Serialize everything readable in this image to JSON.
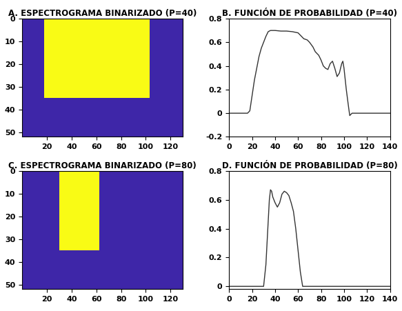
{
  "chart_data": [
    {
      "type": "image",
      "title": "A. ESPECTROGRAMA BINARIZADO (P=40)",
      "cells": {
        "n_rows": 52,
        "n_cols": 130,
        "filled_rows": [
          0,
          35
        ],
        "filled_cols": [
          18,
          103
        ],
        "empty_value": 0,
        "filled_value": 1
      },
      "colors": [
        "#3e26a8",
        "#f9fb15"
      ],
      "xlim": [
        0,
        130
      ],
      "ylim": [
        52,
        0
      ],
      "xticks": [
        20,
        40,
        60,
        80,
        100,
        120
      ],
      "yticks": [
        0,
        10,
        20,
        30,
        40,
        50
      ]
    },
    {
      "type": "line",
      "title": "B. FUNCIÓN DE PROBABILIDAD (P=40)",
      "x": [
        0,
        16,
        18,
        20,
        22,
        24,
        26,
        28,
        30,
        32,
        34,
        36,
        40,
        45,
        50,
        55,
        60,
        62,
        65,
        68,
        70,
        73,
        75,
        78,
        80,
        82,
        84,
        86,
        88,
        90,
        92,
        94,
        96,
        98,
        99,
        100,
        102,
        104,
        105,
        107,
        140
      ],
      "values": [
        0,
        0,
        0.02,
        0.15,
        0.28,
        0.38,
        0.48,
        0.55,
        0.6,
        0.65,
        0.69,
        0.7,
        0.7,
        0.695,
        0.695,
        0.69,
        0.68,
        0.66,
        0.63,
        0.62,
        0.6,
        0.56,
        0.52,
        0.49,
        0.45,
        0.4,
        0.38,
        0.37,
        0.42,
        0.44,
        0.38,
        0.31,
        0.34,
        0.42,
        0.44,
        0.38,
        0.2,
        0.05,
        -0.02,
        0,
        0
      ],
      "color": "#333333",
      "xlim": [
        0,
        140
      ],
      "ylim": [
        -0.2,
        0.8
      ],
      "xticks": [
        0,
        20,
        40,
        60,
        80,
        100,
        120,
        140
      ],
      "yticks": [
        -0.2,
        0,
        0.2,
        0.4,
        0.6,
        0.8
      ]
    },
    {
      "type": "image",
      "title": "C. ESPECTROGRAMA BINARIZADO (P=80)",
      "cells": {
        "n_rows": 52,
        "n_cols": 130,
        "filled_rows": [
          0,
          35
        ],
        "filled_cols": [
          30,
          62
        ],
        "empty_value": 0,
        "filled_value": 1
      },
      "colors": [
        "#3e26a8",
        "#f9fb15"
      ],
      "xlim": [
        0,
        130
      ],
      "ylim": [
        52,
        0
      ],
      "xticks": [
        20,
        40,
        60,
        80,
        100,
        120
      ],
      "yticks": [
        0,
        10,
        20,
        30,
        40,
        50
      ]
    },
    {
      "type": "line",
      "title": "D. FUNCIÓN DE PROBABILIDAD (P=80)",
      "x": [
        0,
        30,
        32,
        34,
        35,
        36,
        37,
        38,
        40,
        42,
        44,
        46,
        48,
        50,
        52,
        54,
        56,
        58,
        60,
        62,
        64,
        65,
        140
      ],
      "values": [
        0,
        0,
        0.15,
        0.45,
        0.6,
        0.67,
        0.66,
        0.62,
        0.58,
        0.55,
        0.58,
        0.64,
        0.66,
        0.65,
        0.63,
        0.58,
        0.52,
        0.4,
        0.25,
        0.1,
        0.0,
        0.0,
        0
      ],
      "color": "#333333",
      "xlim": [
        0,
        140
      ],
      "ylim": [
        -0.02,
        0.8
      ],
      "xticks": [
        0,
        20,
        40,
        60,
        80,
        100,
        120,
        140
      ],
      "yticks": [
        0,
        0.2,
        0.4,
        0.6,
        0.8
      ]
    }
  ]
}
